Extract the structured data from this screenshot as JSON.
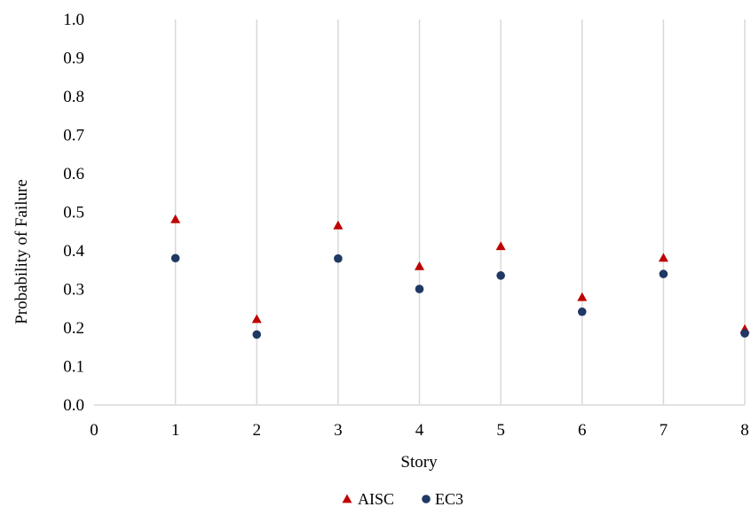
{
  "chart_data": {
    "type": "scatter",
    "title": "",
    "xlabel": "Story",
    "ylabel": "Probability of Failure",
    "xlim": [
      0,
      8
    ],
    "ylim": [
      0,
      1.0
    ],
    "x_ticks": [
      "0",
      "1",
      "2",
      "3",
      "4",
      "5",
      "6",
      "7",
      "8"
    ],
    "y_ticks": [
      "0.0",
      "0.1",
      "0.2",
      "0.3",
      "0.4",
      "0.5",
      "0.6",
      "0.7",
      "0.8",
      "0.9",
      "1.0"
    ],
    "grid": "vertical",
    "legend_position": "bottom",
    "series": [
      {
        "name": "AISC",
        "marker": "triangle",
        "color": "#c00000",
        "x": [
          1,
          2,
          3,
          4,
          5,
          6,
          7,
          8
        ],
        "y": [
          0.482,
          0.223,
          0.466,
          0.36,
          0.412,
          0.28,
          0.382,
          0.197
        ]
      },
      {
        "name": "EC3",
        "marker": "circle",
        "color": "#1f3864",
        "x": [
          1,
          2,
          3,
          4,
          5,
          6,
          7,
          8
        ],
        "y": [
          0.381,
          0.183,
          0.38,
          0.301,
          0.336,
          0.242,
          0.34,
          0.186
        ]
      }
    ]
  }
}
